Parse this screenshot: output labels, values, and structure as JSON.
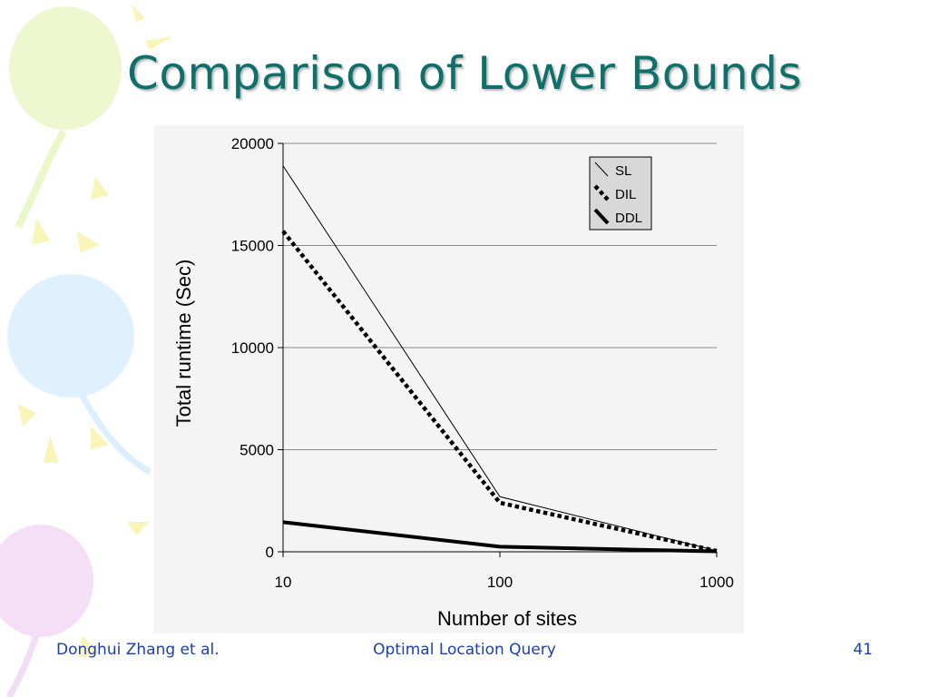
{
  "slide": {
    "title": "Comparison of Lower Bounds",
    "footer_left": "Donghui Zhang et al.",
    "footer_center": "Optimal Location Query",
    "page_number": "41"
  },
  "colors": {
    "title": "#0f6f6a",
    "footer_text": "#1a3fb0",
    "plot_background": "#f4f4f4",
    "legend_background": "#d8d8d8"
  },
  "chart_data": {
    "type": "line",
    "xlabel": "Number of sites",
    "ylabel": "Total runtime (Sec)",
    "x_scale": "log",
    "x": [
      10,
      100,
      1000
    ],
    "x_tick_labels": [
      "10",
      "100",
      "1000"
    ],
    "ylim": [
      0,
      20000
    ],
    "y_ticks": [
      0,
      5000,
      10000,
      15000,
      20000
    ],
    "y_tick_labels": [
      "0",
      "5000",
      "10000",
      "15000",
      "20000"
    ],
    "grid": "horizontal",
    "legend_position": "top-right",
    "series": [
      {
        "name": "SL",
        "style": "thin solid",
        "values": [
          18900,
          2700,
          50
        ]
      },
      {
        "name": "DIL",
        "style": "thick dotted",
        "values": [
          15700,
          2400,
          40
        ]
      },
      {
        "name": "DDL",
        "style": "thick solid",
        "values": [
          1450,
          250,
          20
        ]
      }
    ]
  }
}
